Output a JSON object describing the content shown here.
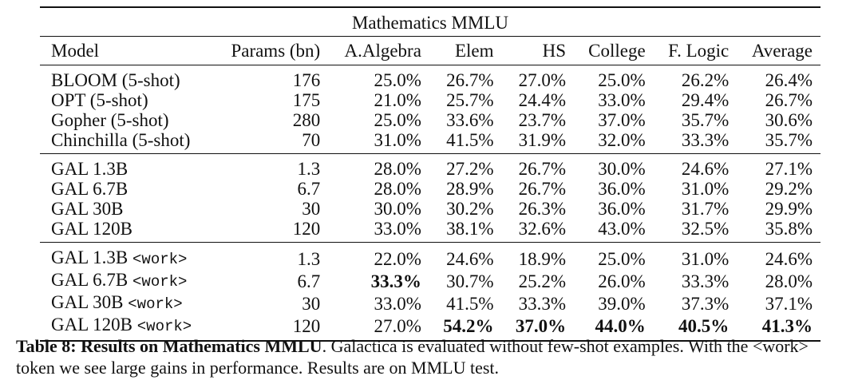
{
  "table": {
    "title": "Mathematics MMLU",
    "columns": [
      "Model",
      "Params (bn)",
      "A.Algebra",
      "Elem",
      "HS",
      "College",
      "F. Logic",
      "Average"
    ],
    "groups": [
      {
        "rows": [
          {
            "model": "BLOOM (5-shot)",
            "tag": "",
            "params": "176",
            "vals": [
              "25.0%",
              "26.7%",
              "27.0%",
              "25.0%",
              "26.2%",
              "26.4%"
            ],
            "bold": [
              false,
              false,
              false,
              false,
              false,
              false
            ]
          },
          {
            "model": "OPT (5-shot)",
            "tag": "",
            "params": "175",
            "vals": [
              "21.0%",
              "25.7%",
              "24.4%",
              "33.0%",
              "29.4%",
              "26.7%"
            ],
            "bold": [
              false,
              false,
              false,
              false,
              false,
              false
            ]
          },
          {
            "model": "Gopher (5-shot)",
            "tag": "",
            "params": "280",
            "vals": [
              "25.0%",
              "33.6%",
              "23.7%",
              "37.0%",
              "35.7%",
              "30.6%"
            ],
            "bold": [
              false,
              false,
              false,
              false,
              false,
              false
            ]
          },
          {
            "model": "Chinchilla (5-shot)",
            "tag": "",
            "params": "70",
            "vals": [
              "31.0%",
              "41.5%",
              "31.9%",
              "32.0%",
              "33.3%",
              "35.7%"
            ],
            "bold": [
              false,
              false,
              false,
              false,
              false,
              false
            ]
          }
        ]
      },
      {
        "rows": [
          {
            "model": "GAL 1.3B",
            "tag": "",
            "params": "1.3",
            "vals": [
              "28.0%",
              "27.2%",
              "26.7%",
              "30.0%",
              "24.6%",
              "27.1%"
            ],
            "bold": [
              false,
              false,
              false,
              false,
              false,
              false
            ]
          },
          {
            "model": "GAL 6.7B",
            "tag": "",
            "params": "6.7",
            "vals": [
              "28.0%",
              "28.9%",
              "26.7%",
              "36.0%",
              "31.0%",
              "29.2%"
            ],
            "bold": [
              false,
              false,
              false,
              false,
              false,
              false
            ]
          },
          {
            "model": "GAL 30B",
            "tag": "",
            "params": "30",
            "vals": [
              "30.0%",
              "30.2%",
              "26.3%",
              "36.0%",
              "31.7%",
              "29.9%"
            ],
            "bold": [
              false,
              false,
              false,
              false,
              false,
              false
            ]
          },
          {
            "model": "GAL 120B",
            "tag": "",
            "params": "120",
            "vals": [
              "33.0%",
              "38.1%",
              "32.6%",
              "43.0%",
              "32.5%",
              "35.8%"
            ],
            "bold": [
              false,
              false,
              false,
              false,
              false,
              false
            ]
          }
        ]
      },
      {
        "rows": [
          {
            "model": "GAL 1.3B",
            "tag": "<work>",
            "params": "1.3",
            "vals": [
              "22.0%",
              "24.6%",
              "18.9%",
              "25.0%",
              "31.0%",
              "24.6%"
            ],
            "bold": [
              false,
              false,
              false,
              false,
              false,
              false
            ]
          },
          {
            "model": "GAL 6.7B",
            "tag": "<work>",
            "params": "6.7",
            "vals": [
              "33.3%",
              "30.7%",
              "25.2%",
              "26.0%",
              "33.3%",
              "28.0%"
            ],
            "bold": [
              true,
              false,
              false,
              false,
              false,
              false
            ]
          },
          {
            "model": "GAL 30B",
            "tag": "<work>",
            "params": "30",
            "vals": [
              "33.0%",
              "41.5%",
              "33.3%",
              "39.0%",
              "37.3%",
              "37.1%"
            ],
            "bold": [
              false,
              false,
              false,
              false,
              false,
              false
            ]
          },
          {
            "model": "GAL 120B",
            "tag": "<work>",
            "params": "120",
            "vals": [
              "27.0%",
              "54.2%",
              "37.0%",
              "44.0%",
              "40.5%",
              "41.3%"
            ],
            "bold": [
              false,
              true,
              true,
              true,
              true,
              true
            ]
          }
        ]
      }
    ]
  },
  "caption": {
    "label": "Table 8: Results on Mathematics MMLU",
    "text": ". Galactica is evaluated without few-shot examples. With the <work> token we see large gains in performance. Results are on MMLU test."
  }
}
